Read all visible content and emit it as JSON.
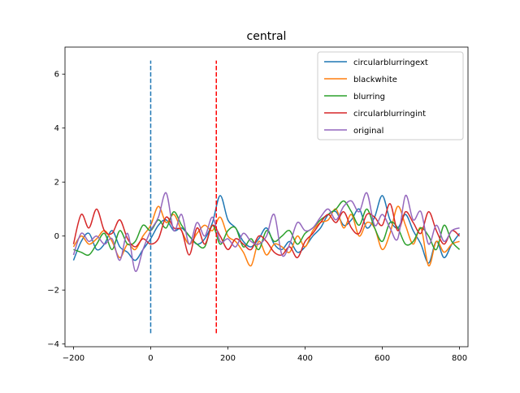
{
  "chart_data": {
    "type": "line",
    "title": "central",
    "xlabel": "",
    "ylabel": "",
    "xlim": [
      -222,
      822
    ],
    "ylim": [
      -4.1,
      7.0
    ],
    "xticks": [
      -200,
      0,
      200,
      400,
      600,
      800
    ],
    "yticks": [
      -4,
      -2,
      0,
      2,
      4,
      6
    ],
    "xtick_labels": [
      "−200",
      "0",
      "200",
      "400",
      "600",
      "800"
    ],
    "ytick_labels": [
      "−4",
      "−2",
      "0",
      "2",
      "4",
      "6"
    ],
    "grid": false,
    "legend_position": "top-right",
    "vlines": [
      {
        "x": 0,
        "ymin": -3.6,
        "ymax": 6.5,
        "color": "#1f77b4",
        "style": "dashed"
      },
      {
        "x": 170,
        "ymin": -3.6,
        "ymax": 6.5,
        "color": "#ff0000",
        "style": "dashed"
      }
    ],
    "series": [
      {
        "name": "circularblurringext",
        "color": "#1f77b4",
        "x": [
          -200,
          -180,
          -160,
          -140,
          -120,
          -100,
          -80,
          -60,
          -40,
          -20,
          0,
          20,
          40,
          60,
          80,
          100,
          120,
          140,
          160,
          180,
          200,
          220,
          240,
          260,
          280,
          300,
          320,
          340,
          360,
          380,
          400,
          420,
          440,
          460,
          480,
          500,
          520,
          540,
          560,
          580,
          600,
          620,
          640,
          660,
          680,
          700,
          720,
          740,
          760,
          780,
          800
        ],
        "y": [
          -0.9,
          -0.2,
          0.1,
          -0.5,
          -0.3,
          0.2,
          -0.4,
          -0.6,
          -0.9,
          -0.5,
          -0.1,
          0.4,
          0.6,
          0.2,
          0.3,
          0.0,
          -0.3,
          -0.1,
          0.5,
          1.5,
          0.6,
          0.3,
          -0.2,
          -0.4,
          -0.1,
          0.3,
          -0.3,
          -0.5,
          -0.2,
          -0.6,
          -0.4,
          0.0,
          0.3,
          0.8,
          0.9,
          0.4,
          0.6,
          1.0,
          0.3,
          0.7,
          1.5,
          0.6,
          0.3,
          0.8,
          0.2,
          -0.3,
          -1.0,
          -0.2,
          -0.8,
          -0.3,
          0.1
        ]
      },
      {
        "name": "blackwhite",
        "color": "#ff7f0e",
        "x": [
          -200,
          -180,
          -160,
          -140,
          -120,
          -100,
          -80,
          -60,
          -40,
          -20,
          0,
          20,
          40,
          60,
          80,
          100,
          120,
          140,
          160,
          180,
          200,
          220,
          240,
          260,
          280,
          300,
          320,
          340,
          360,
          380,
          400,
          420,
          440,
          460,
          480,
          500,
          520,
          540,
          560,
          580,
          600,
          620,
          640,
          660,
          680,
          700,
          720,
          740,
          760,
          780,
          800
        ],
        "y": [
          -0.4,
          0.0,
          -0.3,
          -0.1,
          0.2,
          -0.2,
          -0.8,
          -0.3,
          -0.5,
          0.0,
          0.4,
          1.1,
          0.5,
          0.8,
          0.2,
          -0.3,
          0.1,
          0.4,
          0.2,
          0.7,
          0.0,
          -0.2,
          -0.6,
          -1.1,
          -0.2,
          -0.7,
          -0.3,
          -0.4,
          -0.6,
          0.0,
          -0.4,
          0.2,
          0.5,
          0.6,
          1.0,
          0.3,
          0.8,
          0.0,
          0.5,
          0.3,
          -0.5,
          0.1,
          1.1,
          0.4,
          -0.3,
          0.3,
          -1.1,
          -0.2,
          -0.6,
          -0.3,
          -0.2
        ]
      },
      {
        "name": "blurring",
        "color": "#2ca02c",
        "x": [
          -200,
          -180,
          -160,
          -140,
          -120,
          -100,
          -80,
          -60,
          -40,
          -20,
          0,
          20,
          40,
          60,
          80,
          100,
          120,
          140,
          160,
          180,
          200,
          220,
          240,
          260,
          280,
          300,
          320,
          340,
          360,
          380,
          400,
          420,
          440,
          460,
          480,
          500,
          520,
          540,
          560,
          580,
          600,
          620,
          640,
          660,
          680,
          700,
          720,
          740,
          760,
          780,
          800
        ],
        "y": [
          -0.5,
          -0.6,
          -0.7,
          -0.3,
          0.1,
          -0.5,
          0.2,
          -0.3,
          -0.2,
          0.4,
          0.2,
          0.6,
          0.3,
          0.9,
          0.4,
          0.0,
          -0.3,
          -0.4,
          0.4,
          -0.3,
          0.2,
          0.3,
          -0.4,
          -0.1,
          -0.5,
          0.2,
          -0.2,
          0.0,
          0.2,
          -0.3,
          0.1,
          0.3,
          0.6,
          0.8,
          1.0,
          1.3,
          0.9,
          0.4,
          1.0,
          0.3,
          -0.2,
          0.5,
          0.3,
          -0.3,
          -0.2,
          0.3,
          0.0,
          -0.5,
          0.4,
          -0.2,
          -0.5
        ]
      },
      {
        "name": "circularblurringint",
        "color": "#d62728",
        "x": [
          -200,
          -180,
          -160,
          -140,
          -120,
          -100,
          -80,
          -60,
          -40,
          -20,
          0,
          20,
          40,
          60,
          80,
          100,
          120,
          140,
          160,
          180,
          200,
          220,
          240,
          260,
          280,
          300,
          320,
          340,
          360,
          380,
          400,
          420,
          440,
          460,
          480,
          500,
          520,
          540,
          560,
          580,
          600,
          620,
          640,
          660,
          680,
          700,
          720,
          740,
          760,
          780,
          800
        ],
        "y": [
          -0.3,
          0.8,
          0.3,
          1.0,
          0.2,
          0.1,
          0.6,
          -0.1,
          -0.4,
          -0.1,
          -0.3,
          -0.1,
          0.7,
          0.3,
          0.2,
          -0.7,
          0.3,
          -0.3,
          0.4,
          0.0,
          -0.5,
          -0.1,
          -0.3,
          -0.5,
          0.0,
          -0.2,
          -0.6,
          -0.7,
          -0.4,
          -0.8,
          -0.2,
          0.1,
          0.5,
          0.8,
          0.5,
          0.9,
          0.3,
          0.1,
          0.8,
          0.7,
          0.4,
          1.2,
          0.2,
          0.9,
          0.5,
          0.1,
          0.9,
          0.2,
          -0.3,
          0.2,
          0.0
        ]
      },
      {
        "name": "original",
        "color": "#9467bd",
        "x": [
          -200,
          -180,
          -160,
          -140,
          -120,
          -100,
          -80,
          -60,
          -40,
          -20,
          0,
          20,
          40,
          60,
          80,
          100,
          120,
          140,
          160,
          180,
          200,
          220,
          240,
          260,
          280,
          300,
          320,
          340,
          360,
          380,
          400,
          420,
          440,
          460,
          480,
          500,
          520,
          540,
          560,
          580,
          600,
          620,
          640,
          660,
          680,
          700,
          720,
          740,
          760,
          780,
          800
        ],
        "y": [
          -0.7,
          0.1,
          -0.2,
          0.0,
          -0.3,
          -0.1,
          -0.9,
          0.1,
          -1.3,
          -0.5,
          0.2,
          0.7,
          1.6,
          0.2,
          0.8,
          -0.3,
          0.5,
          0.0,
          0.7,
          -0.2,
          -0.1,
          -0.4,
          0.1,
          -0.2,
          -0.3,
          0.0,
          0.8,
          -0.7,
          -0.3,
          0.5,
          0.2,
          0.3,
          0.7,
          1.0,
          0.6,
          1.1,
          1.3,
          0.9,
          1.6,
          0.4,
          0.8,
          0.3,
          -0.1,
          1.5,
          0.6,
          0.9,
          -0.3,
          0.4,
          -0.2,
          0.2,
          0.3
        ]
      }
    ]
  }
}
